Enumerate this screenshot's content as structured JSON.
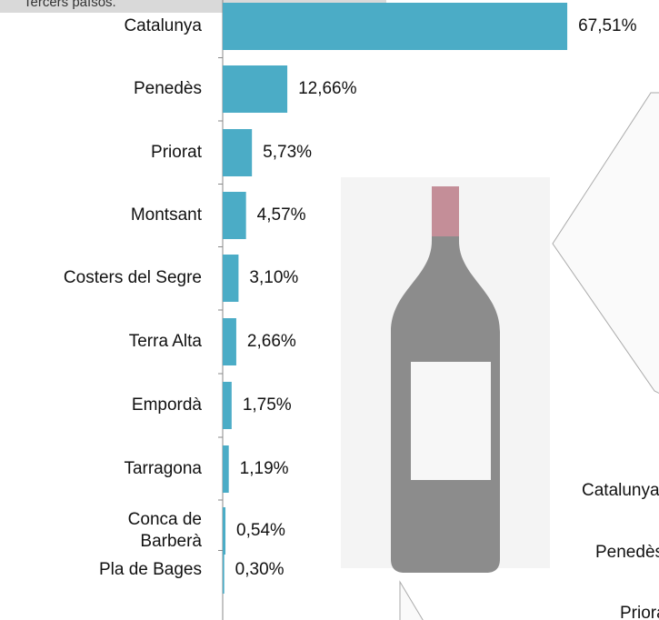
{
  "chart_data": {
    "type": "bar",
    "orientation": "horizontal",
    "legend_text": "Tercers països.",
    "categories": [
      "Catalunya",
      "Penedès",
      "Priorat",
      "Montsant",
      "Costers del Segre",
      "Terra Alta",
      "Empordà",
      "Tarragona",
      "Conca de\nBarberà",
      "Pla de Bages"
    ],
    "values": [
      67.51,
      12.66,
      5.73,
      4.57,
      3.1,
      2.66,
      1.75,
      1.19,
      0.54,
      0.3
    ],
    "value_labels": [
      "67,51%",
      "12,66%",
      "5,73%",
      "4,57%",
      "3,10%",
      "2,66%",
      "1,75%",
      "1,19%",
      "0,54%",
      "0,30%"
    ],
    "color": "#4bacc6",
    "inset_labels": [
      "Catalunya",
      "Penedès",
      "Priorat"
    ]
  }
}
